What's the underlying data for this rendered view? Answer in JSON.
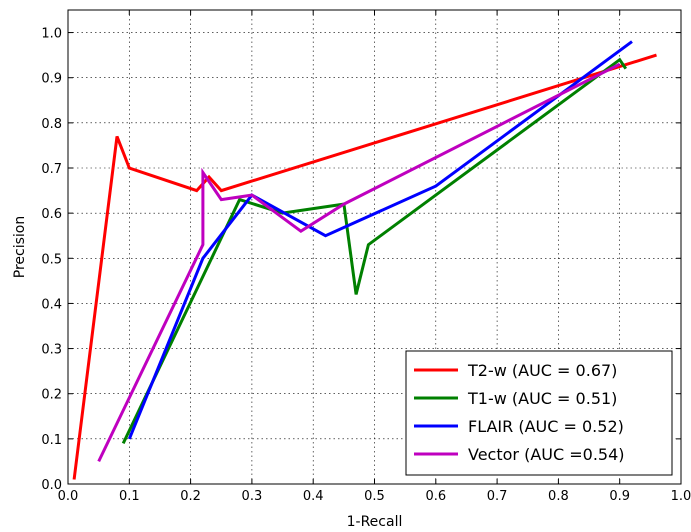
{
  "chart_data": {
    "type": "line",
    "title": "",
    "xlabel": "1-Recall",
    "ylabel": "Precision",
    "xlim": [
      0.0,
      1.0
    ],
    "ylim": [
      0.0,
      1.05
    ],
    "xticks": [
      "0.0",
      "0.1",
      "0.2",
      "0.3",
      "0.4",
      "0.5",
      "0.6",
      "0.7",
      "0.8",
      "0.9",
      "1.0"
    ],
    "yticks": [
      "0.0",
      "0.1",
      "0.2",
      "0.3",
      "0.4",
      "0.5",
      "0.6",
      "0.7",
      "0.8",
      "0.9",
      "1.0"
    ],
    "grid": true,
    "legend_position": "bottom-right",
    "series": [
      {
        "name": "T2-w  (AUC = 0.67)",
        "color": "#ff0000",
        "points": [
          [
            0.01,
            0.01
          ],
          [
            0.08,
            0.77
          ],
          [
            0.1,
            0.7
          ],
          [
            0.21,
            0.65
          ],
          [
            0.23,
            0.68
          ],
          [
            0.25,
            0.65
          ],
          [
            0.96,
            0.95
          ]
        ]
      },
      {
        "name": "T1-w (AUC = 0.51)",
        "color": "#008000",
        "points": [
          [
            0.09,
            0.09
          ],
          [
            0.28,
            0.63
          ],
          [
            0.35,
            0.6
          ],
          [
            0.45,
            0.62
          ],
          [
            0.47,
            0.42
          ],
          [
            0.49,
            0.53
          ],
          [
            0.6,
            0.64
          ],
          [
            0.9,
            0.94
          ],
          [
            0.91,
            0.92
          ]
        ]
      },
      {
        "name": "FLAIR (AUC = 0.52)",
        "color": "#0000ff",
        "points": [
          [
            0.1,
            0.1
          ],
          [
            0.22,
            0.5
          ],
          [
            0.3,
            0.64
          ],
          [
            0.42,
            0.55
          ],
          [
            0.6,
            0.66
          ],
          [
            0.92,
            0.98
          ]
        ]
      },
      {
        "name": "Vector (AUC =0.54)",
        "color": "#bf00bf",
        "points": [
          [
            0.05,
            0.05
          ],
          [
            0.22,
            0.53
          ],
          [
            0.22,
            0.69
          ],
          [
            0.23,
            0.67
          ],
          [
            0.25,
            0.63
          ],
          [
            0.3,
            0.64
          ],
          [
            0.38,
            0.56
          ],
          [
            0.45,
            0.62
          ],
          [
            0.9,
            0.93
          ]
        ]
      }
    ]
  }
}
